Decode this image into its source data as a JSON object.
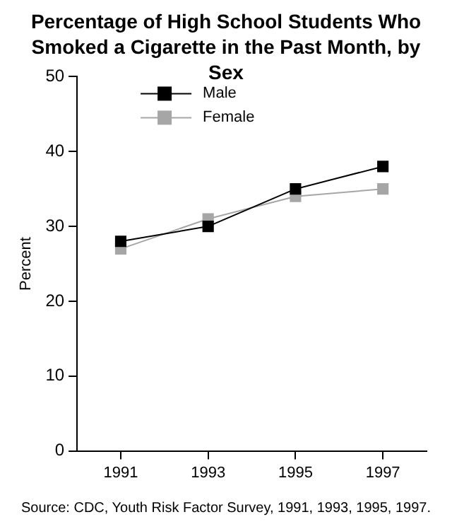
{
  "chart_data": {
    "type": "line",
    "title": "Percentage of High School Students Who Smoked a Cigarette in the Past Month, by Sex",
    "ylabel": "Percent",
    "categories": [
      "1991",
      "1993",
      "1995",
      "1997"
    ],
    "series": [
      {
        "name": "Male",
        "color": "#000000",
        "values": [
          28,
          30,
          35,
          38
        ]
      },
      {
        "name": "Female",
        "color": "#a6a6a6",
        "values": [
          27,
          31,
          34,
          35
        ]
      }
    ],
    "ylim": [
      0,
      50
    ],
    "yticks": [
      0,
      10,
      20,
      30,
      40,
      50
    ],
    "grid": false,
    "legend": "top left",
    "marker": "square",
    "line_style": "solid",
    "annotations": [
      "Source: CDC, Youth Risk Factor Survey, 1991, 1993, 1995, 1997."
    ]
  }
}
